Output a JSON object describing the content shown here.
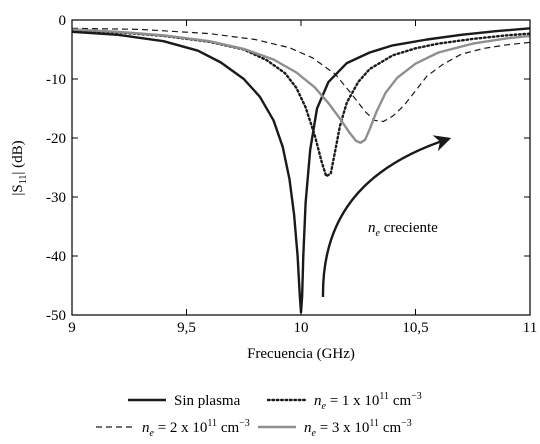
{
  "chart_data": {
    "type": "line",
    "xlabel": "Frecuencia (GHz)",
    "ylabel_prefix": "|S",
    "ylabel_sub": "11",
    "ylabel_suffix": "| (dB)",
    "xlim": [
      9,
      11
    ],
    "ylim": [
      -50,
      0
    ],
    "xticks": [
      9,
      9.5,
      10,
      10.5,
      11
    ],
    "xtick_labels": [
      "9",
      "9,5",
      "10",
      "10,5",
      "11"
    ],
    "yticks": [
      0,
      -10,
      -20,
      -30,
      -40,
      -50
    ],
    "ytick_labels": [
      "0",
      "-10",
      "-20",
      "-30",
      "-40",
      "-50"
    ],
    "grid": false,
    "legend_position": "bottom",
    "annotation": {
      "var": "n",
      "sub": "e",
      "text": " creciente"
    },
    "series": [
      {
        "name": "Sin plasma",
        "legend": {
          "text": "Sin plasma"
        },
        "color": "#1a1a1a",
        "style": "solid",
        "width": 2.4,
        "x": [
          9.0,
          9.2,
          9.4,
          9.55,
          9.65,
          9.75,
          9.82,
          9.88,
          9.92,
          9.95,
          9.97,
          9.985,
          9.995,
          10.0,
          10.005,
          10.01,
          10.02,
          10.04,
          10.07,
          10.12,
          10.2,
          10.3,
          10.4,
          10.55,
          10.7,
          10.85,
          11.0
        ],
        "y": [
          -2,
          -2.5,
          -3.6,
          -5.2,
          -7.2,
          -10,
          -13,
          -17,
          -21.5,
          -27,
          -33,
          -40,
          -47,
          -49.5,
          -47,
          -40,
          -31,
          -22,
          -15,
          -10.5,
          -7.3,
          -5.5,
          -4.3,
          -3.3,
          -2.5,
          -1.9,
          -1.4
        ]
      },
      {
        "name": "n_e = 1 x 10^11 cm^-3",
        "legend": {
          "var": "n",
          "sub": "e",
          "mid": " = 1 x 10",
          "sup": "11",
          "unit": " cm",
          "unit_sup": "−3"
        },
        "color": "#1a1a1a",
        "style": "dotted",
        "width": 2.4,
        "x": [
          9.0,
          9.2,
          9.4,
          9.6,
          9.75,
          9.85,
          9.93,
          9.98,
          10.02,
          10.06,
          10.09,
          10.11,
          10.13,
          10.15,
          10.17,
          10.2,
          10.25,
          10.3,
          10.4,
          10.5,
          10.6,
          10.75,
          10.9,
          11.0
        ],
        "y": [
          -1.8,
          -2.1,
          -2.7,
          -3.7,
          -5,
          -6.8,
          -9,
          -11.5,
          -14.8,
          -19.5,
          -24,
          -26.5,
          -26,
          -22,
          -18,
          -14,
          -10.5,
          -8.3,
          -6,
          -4.8,
          -4,
          -3.2,
          -2.6,
          -2.3
        ]
      },
      {
        "name": "n_e = 2 x 10^11 cm^-3",
        "legend": {
          "var": "n",
          "sub": "e",
          "mid": " = 2 x 10",
          "sup": "11",
          "unit": " cm",
          "unit_sup": "−3"
        },
        "color": "#1a1a1a",
        "style": "dashed",
        "width": 1.2,
        "x": [
          9.0,
          9.3,
          9.6,
          9.8,
          9.95,
          10.05,
          10.15,
          10.22,
          10.28,
          10.32,
          10.36,
          10.4,
          10.45,
          10.5,
          10.55,
          10.62,
          10.7,
          10.8,
          10.9,
          11.0
        ],
        "y": [
          -1.4,
          -1.6,
          -2.3,
          -3.3,
          -4.7,
          -6.4,
          -9.2,
          -12.5,
          -15.5,
          -17,
          -17.2,
          -16.3,
          -14.5,
          -12,
          -9.5,
          -7.5,
          -5.8,
          -4.8,
          -4.2,
          -3.8
        ]
      },
      {
        "name": "n_e = 3 x 10^11 cm^-3",
        "legend": {
          "var": "n",
          "sub": "e",
          "mid": " = 3 x 10",
          "sup": "11",
          "unit": " cm",
          "unit_sup": "−3"
        },
        "color": "#8f8f8f",
        "style": "solid",
        "width": 2.4,
        "x": [
          9.0,
          9.2,
          9.4,
          9.6,
          9.75,
          9.88,
          9.98,
          10.06,
          10.12,
          10.17,
          10.21,
          10.24,
          10.26,
          10.28,
          10.3,
          10.33,
          10.37,
          10.42,
          10.5,
          10.6,
          10.75,
          10.9,
          11.0
        ],
        "y": [
          -1.6,
          -2,
          -2.6,
          -3.6,
          -4.9,
          -6.7,
          -8.9,
          -11.4,
          -14.1,
          -16.7,
          -19,
          -20.5,
          -20.8,
          -20.3,
          -18.5,
          -15.5,
          -12.3,
          -9.8,
          -7.4,
          -5.5,
          -4,
          -3.1,
          -2.7
        ]
      }
    ]
  }
}
